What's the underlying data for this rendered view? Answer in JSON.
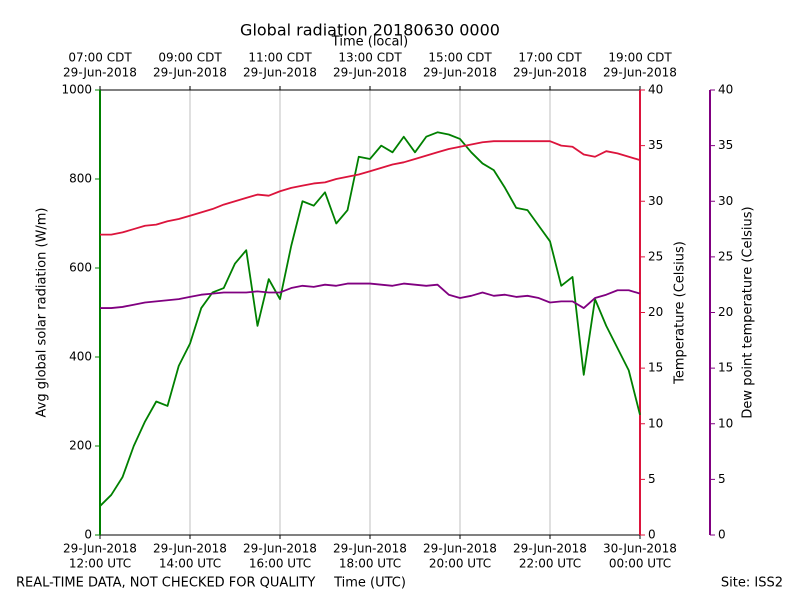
{
  "chart_data": {
    "type": "line",
    "title": "Global radiation 20180630 0000",
    "xlabel": "Time (UTC)",
    "x2label": "Time (local)",
    "ylabel": "Avg global solar radiation (W/m)",
    "y2label": "Temperature (Celsius)",
    "y3label": "Dew point temperature (Celsius)",
    "x": [
      12,
      12.25,
      12.5,
      12.75,
      13,
      13.25,
      13.5,
      13.75,
      14,
      14.25,
      14.5,
      14.75,
      15,
      15.25,
      15.5,
      15.75,
      16,
      16.25,
      16.5,
      16.75,
      17,
      17.25,
      17.5,
      17.75,
      18,
      18.25,
      18.5,
      18.75,
      19,
      19.25,
      19.5,
      19.75,
      20,
      20.25,
      20.5,
      20.75,
      21,
      21.25,
      21.5,
      21.75,
      22,
      22.25,
      22.5,
      22.75,
      23,
      23.25,
      23.5,
      23.75,
      24
    ],
    "xlim": [
      12,
      24
    ],
    "xticks": [
      {
        "value": 12,
        "label": [
          "29-Jun-2018",
          "12:00 UTC"
        ]
      },
      {
        "value": 14,
        "label": [
          "29-Jun-2018",
          "14:00 UTC"
        ]
      },
      {
        "value": 16,
        "label": [
          "29-Jun-2018",
          "16:00 UTC"
        ]
      },
      {
        "value": 18,
        "label": [
          "29-Jun-2018",
          "18:00 UTC"
        ]
      },
      {
        "value": 20,
        "label": [
          "29-Jun-2018",
          "20:00 UTC"
        ]
      },
      {
        "value": 22,
        "label": [
          "29-Jun-2018",
          "22:00 UTC"
        ]
      },
      {
        "value": 24,
        "label": [
          "30-Jun-2018",
          "00:00 UTC"
        ]
      }
    ],
    "x2ticks": [
      {
        "value": 12,
        "label": [
          "07:00 CDT",
          "29-Jun-2018"
        ]
      },
      {
        "value": 14,
        "label": [
          "09:00 CDT",
          "29-Jun-2018"
        ]
      },
      {
        "value": 16,
        "label": [
          "11:00 CDT",
          "29-Jun-2018"
        ]
      },
      {
        "value": 18,
        "label": [
          "13:00 CDT",
          "29-Jun-2018"
        ]
      },
      {
        "value": 20,
        "label": [
          "15:00 CDT",
          "29-Jun-2018"
        ]
      },
      {
        "value": 22,
        "label": [
          "17:00 CDT",
          "29-Jun-2018"
        ]
      },
      {
        "value": 24,
        "label": [
          "19:00 CDT",
          "29-Jun-2018"
        ]
      }
    ],
    "ylim": [
      0,
      1000
    ],
    "yticks": [
      0,
      200,
      400,
      600,
      800,
      1000
    ],
    "y2lim": [
      0,
      40
    ],
    "y2ticks": [
      0,
      5,
      10,
      15,
      20,
      25,
      30,
      35,
      40
    ],
    "y3lim": [
      0,
      40
    ],
    "y3ticks": [
      0,
      5,
      10,
      15,
      20,
      25,
      30,
      35,
      40
    ],
    "grid": "x",
    "series": [
      {
        "name": "Avg global solar radiation",
        "color": "#008000",
        "axis": "y",
        "values": [
          65,
          90,
          130,
          200,
          255,
          300,
          290,
          380,
          430,
          510,
          545,
          555,
          610,
          640,
          470,
          575,
          530,
          650,
          750,
          740,
          770,
          700,
          730,
          850,
          845,
          875,
          860,
          895,
          860,
          895,
          905,
          900,
          890,
          860,
          835,
          820,
          780,
          735,
          730,
          695,
          660,
          560,
          580,
          360,
          530,
          470,
          420,
          370,
          270
        ]
      },
      {
        "name": "Temperature",
        "color": "#dc143c",
        "axis": "y2",
        "values": [
          27.0,
          27.0,
          27.2,
          27.5,
          27.8,
          27.9,
          28.2,
          28.4,
          28.7,
          29.0,
          29.3,
          29.7,
          30.0,
          30.3,
          30.6,
          30.5,
          30.9,
          31.2,
          31.4,
          31.6,
          31.7,
          32.0,
          32.2,
          32.4,
          32.7,
          33.0,
          33.3,
          33.5,
          33.8,
          34.1,
          34.4,
          34.7,
          34.9,
          35.1,
          35.3,
          35.4,
          35.4,
          35.4,
          35.4,
          35.4,
          35.4,
          35.0,
          34.9,
          34.2,
          34.0,
          34.5,
          34.3,
          34.0,
          33.7
        ]
      },
      {
        "name": "Dew point temperature",
        "color": "#800080",
        "axis": "y3",
        "values": [
          20.4,
          20.4,
          20.5,
          20.7,
          20.9,
          21.0,
          21.1,
          21.2,
          21.4,
          21.6,
          21.7,
          21.8,
          21.8,
          21.8,
          21.9,
          21.8,
          21.8,
          22.2,
          22.4,
          22.3,
          22.5,
          22.4,
          22.6,
          22.6,
          22.6,
          22.5,
          22.4,
          22.6,
          22.5,
          22.4,
          22.5,
          21.6,
          21.3,
          21.5,
          21.8,
          21.5,
          21.6,
          21.4,
          21.5,
          21.3,
          20.9,
          21.0,
          21.0,
          20.4,
          21.3,
          21.6,
          22.0,
          22.0,
          21.7
        ]
      }
    ]
  },
  "footer_left": "REAL-TIME DATA, NOT CHECKED FOR QUALITY",
  "footer_right": "Site: ISS2"
}
